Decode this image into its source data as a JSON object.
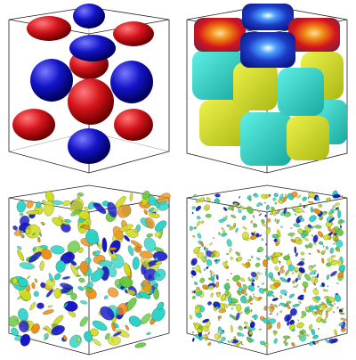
{
  "figure": {
    "panels": [
      {
        "id": "panel-1",
        "description_key": "spheres"
      },
      {
        "id": "panel-2",
        "description_key": "cubes"
      },
      {
        "id": "panel-3",
        "description_key": "turbulence-coarse"
      },
      {
        "id": "panel-4",
        "description_key": "turbulence-fine"
      }
    ],
    "colors": {
      "red": "#d4141c",
      "blue": "#1414c8",
      "cyan": "#28d2c8",
      "yellow": "#d2dc1e",
      "orange": "#f08c14",
      "green": "#64c83c",
      "edge": "#222222"
    }
  }
}
